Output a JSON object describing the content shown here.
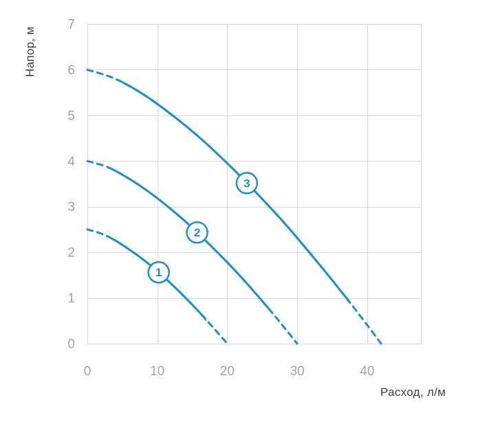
{
  "chart": {
    "y_axis_title": "Напор, м",
    "x_axis_title": "Расход, л/м"
  },
  "chart_data": {
    "type": "line",
    "title": "",
    "xlabel": "Расход, л/м",
    "ylabel": "Напор, м",
    "xlim": [
      0,
      47.7
    ],
    "ylim": [
      0,
      7
    ],
    "x_ticks": [
      0,
      10,
      20,
      30,
      40
    ],
    "y_ticks": [
      0,
      1,
      2,
      3,
      4,
      5,
      6,
      7
    ],
    "grid": true,
    "legend": "none",
    "colors": {
      "curve": "#1e8ecd",
      "grid": "#d9d9d9",
      "tick_label": "#a3a3a3",
      "axis_label": "#3f3f3f",
      "marker_fill": "#ffffff"
    },
    "series": [
      {
        "name": "1",
        "marker_label": "1",
        "marker_q": 10.2,
        "solid_range": [
          3.5,
          17
        ],
        "points": [
          [
            0,
            2.5
          ],
          [
            2,
            2.41
          ],
          [
            4,
            2.26
          ],
          [
            6,
            2.06
          ],
          [
            8,
            1.84
          ],
          [
            10,
            1.59
          ],
          [
            12,
            1.31
          ],
          [
            14,
            1.01
          ],
          [
            16,
            0.69
          ],
          [
            18,
            0.35
          ],
          [
            20,
            0
          ]
        ]
      },
      {
        "name": "2",
        "marker_label": "2",
        "marker_q": 15.7,
        "solid_range": [
          3.5,
          26
        ],
        "points": [
          [
            0,
            4
          ],
          [
            3,
            3.86
          ],
          [
            6,
            3.61
          ],
          [
            9,
            3.3
          ],
          [
            12,
            2.94
          ],
          [
            15,
            2.54
          ],
          [
            18,
            2.09
          ],
          [
            21,
            1.62
          ],
          [
            24,
            1.11
          ],
          [
            27,
            0.57
          ],
          [
            30,
            0
          ]
        ]
      },
      {
        "name": "3",
        "marker_label": "3",
        "marker_q": 22.8,
        "solid_range": [
          5,
          37.5
        ],
        "points": [
          [
            0,
            6
          ],
          [
            4,
            5.8
          ],
          [
            8,
            5.46
          ],
          [
            12,
            5.02
          ],
          [
            16,
            4.52
          ],
          [
            20,
            3.95
          ],
          [
            24,
            3.33
          ],
          [
            28,
            2.67
          ],
          [
            32,
            1.95
          ],
          [
            36,
            1.2
          ],
          [
            39,
            0.61
          ],
          [
            42,
            0
          ]
        ]
      }
    ]
  }
}
